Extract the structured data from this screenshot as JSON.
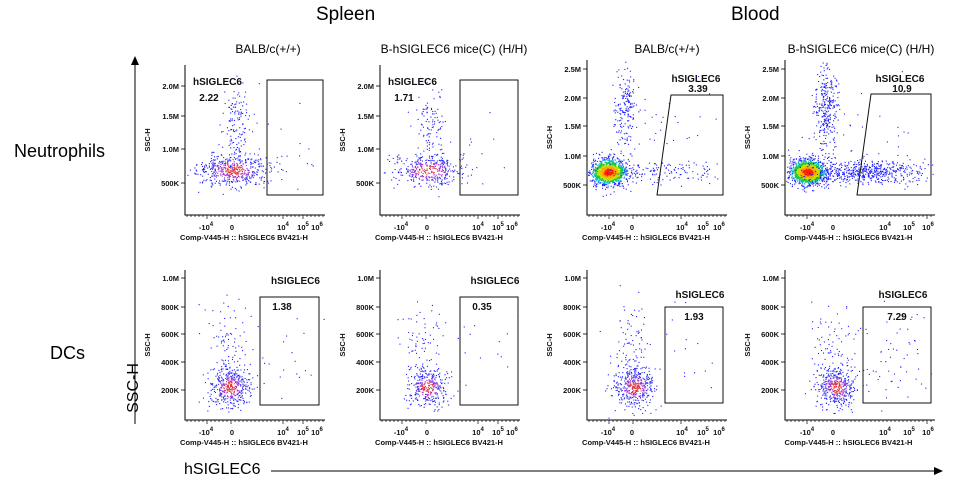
{
  "figure": {
    "groups": [
      "Spleen",
      "Blood"
    ],
    "rows": [
      "Neutrophils",
      "DCs"
    ],
    "ylabel": "SSC-H",
    "xlabel": "hSIGLEC6",
    "column_titles": [
      "BALB/c(+/+)",
      "B-hSIGLEC6 mice(C) (H/H)",
      "BALB/c(+/+)",
      "B-hSIGLEC6 mice(C) (H/H)"
    ]
  },
  "chart_data": [
    {
      "type": "scatter",
      "title": "BALB/c(+/+)",
      "group": "Spleen",
      "row": "Neutrophils",
      "xlabel": "Comp-V445-H :: hSIGLEC6 BV421-H",
      "ylabel": "SSC-H",
      "x_ticks": [
        "-10^4",
        "0",
        "10^4",
        "10^5",
        "10^6"
      ],
      "y_ticks": [
        "500K",
        "1.0M",
        "1.5M",
        "2.0M"
      ],
      "ylim": [
        0,
        2200000
      ],
      "gate": {
        "name": "hSIGLEC6",
        "percent": "2.22"
      },
      "colors": {
        "low": "#1a1aff",
        "mid": "#9b30ff",
        "high": "#ff4040"
      }
    },
    {
      "type": "scatter",
      "title": "B-hSIGLEC6 mice(C) (H/H)",
      "group": "Spleen",
      "row": "Neutrophils",
      "xlabel": "Comp-V445-H :: hSIGLEC6 BV421-H",
      "ylabel": "SSC-H",
      "x_ticks": [
        "-10^4",
        "0",
        "10^4",
        "10^5",
        "10^6"
      ],
      "y_ticks": [
        "500K",
        "1.0M",
        "1.5M",
        "2.0M"
      ],
      "ylim": [
        0,
        2200000
      ],
      "gate": {
        "name": "hSIGLEC6",
        "percent": "1.71"
      }
    },
    {
      "type": "scatter",
      "title": "BALB/c(+/+)",
      "group": "Blood",
      "row": "Neutrophils",
      "xlabel": "Comp-V445-H :: hSIGLEC6 BV421-H",
      "ylabel": "SSC-H",
      "x_ticks": [
        "-10^4",
        "0",
        "10^4",
        "10^5",
        "10^6"
      ],
      "y_ticks": [
        "500K",
        "1.0M",
        "1.5M",
        "2.0M",
        "2.5M"
      ],
      "ylim": [
        0,
        2600000
      ],
      "gate": {
        "name": "hSIGLEC6",
        "percent": "3.39"
      }
    },
    {
      "type": "scatter",
      "title": "B-hSIGLEC6 mice(C) (H/H)",
      "group": "Blood",
      "row": "Neutrophils",
      "xlabel": "Comp-V445-H :: hSIGLEC6 BV421-H",
      "ylabel": "SSC-H",
      "x_ticks": [
        "-10^4",
        "0",
        "10^4",
        "10^5",
        "10^6"
      ],
      "y_ticks": [
        "500K",
        "1.0M",
        "1.5M",
        "2.0M",
        "2.5M"
      ],
      "ylim": [
        0,
        2600000
      ],
      "gate": {
        "name": "hSIGLEC6",
        "percent": "10.9"
      }
    },
    {
      "type": "scatter",
      "title": "BALB/c(+/+)",
      "group": "Spleen",
      "row": "DCs",
      "xlabel": "Comp-V445-H :: hSIGLEC6 BV421-H",
      "ylabel": "SSC-H",
      "x_ticks": [
        "-10^4",
        "0",
        "10^4",
        "10^5",
        "10^6"
      ],
      "y_ticks": [
        "200K",
        "400K",
        "600K",
        "800K",
        "1.0M"
      ],
      "ylim": [
        0,
        1050000
      ],
      "gate": {
        "name": "hSIGLEC6",
        "percent": "1.38"
      }
    },
    {
      "type": "scatter",
      "title": "B-hSIGLEC6 mice(C) (H/H)",
      "group": "Spleen",
      "row": "DCs",
      "xlabel": "Comp-V445-H :: hSIGLEC6 BV421-H",
      "ylabel": "SSC-H",
      "x_ticks": [
        "-10^4",
        "0",
        "10^4",
        "10^5",
        "10^6"
      ],
      "y_ticks": [
        "200K",
        "400K",
        "600K",
        "800K",
        "1.0M"
      ],
      "ylim": [
        0,
        1050000
      ],
      "gate": {
        "name": "hSIGLEC6",
        "percent": "0.35"
      }
    },
    {
      "type": "scatter",
      "title": "BALB/c(+/+)",
      "group": "Blood",
      "row": "DCs",
      "xlabel": "Comp-V445-H :: hSIGLEC6 BV421-H",
      "ylabel": "SSC-H",
      "x_ticks": [
        "-10^4",
        "0",
        "10^4",
        "10^5",
        "10^6"
      ],
      "y_ticks": [
        "200K",
        "400K",
        "600K",
        "800K",
        "1.0M"
      ],
      "ylim": [
        0,
        1050000
      ],
      "gate": {
        "name": "hSIGLEC6",
        "percent": "1.93"
      }
    },
    {
      "type": "scatter",
      "title": "B-hSIGLEC6 mice(C) (H/H)",
      "group": "Blood",
      "row": "DCs",
      "xlabel": "Comp-V445-H :: hSIGLEC6 BV421-H",
      "ylabel": "SSC-H",
      "x_ticks": [
        "-10^4",
        "0",
        "10^4",
        "10^5",
        "10^6"
      ],
      "y_ticks": [
        "200K",
        "400K",
        "600K",
        "800K",
        "1.0M"
      ],
      "ylim": [
        0,
        1050000
      ],
      "gate": {
        "name": "hSIGLEC6",
        "percent": "7.29"
      }
    }
  ]
}
